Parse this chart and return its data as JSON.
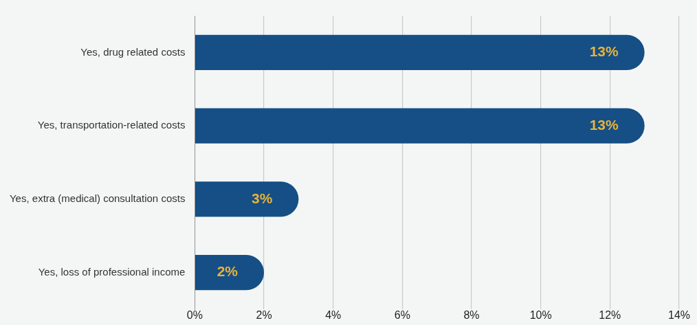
{
  "chart_data": {
    "type": "bar",
    "orientation": "horizontal",
    "categories": [
      "Yes, drug related costs",
      "Yes, transportation-related costs",
      "Yes, extra (medical) consultation costs",
      "Yes, loss of professional income"
    ],
    "values": [
      13,
      13,
      3,
      2
    ],
    "color": "#154f85",
    "value_labels": [
      "13%",
      "13%",
      "3%",
      "2%"
    ],
    "xlim": [
      0,
      14
    ],
    "xticks": [
      {
        "value": 0,
        "label": "0%"
      },
      {
        "value": 2,
        "label": "2%"
      },
      {
        "value": 4,
        "label": "4%"
      },
      {
        "value": 6,
        "label": "6%"
      },
      {
        "value": 8,
        "label": "8%"
      },
      {
        "value": 10,
        "label": "10%"
      },
      {
        "value": 12,
        "label": "12%"
      },
      {
        "value": 14,
        "label": "14%"
      }
    ],
    "grid": "x",
    "legend": false
  }
}
